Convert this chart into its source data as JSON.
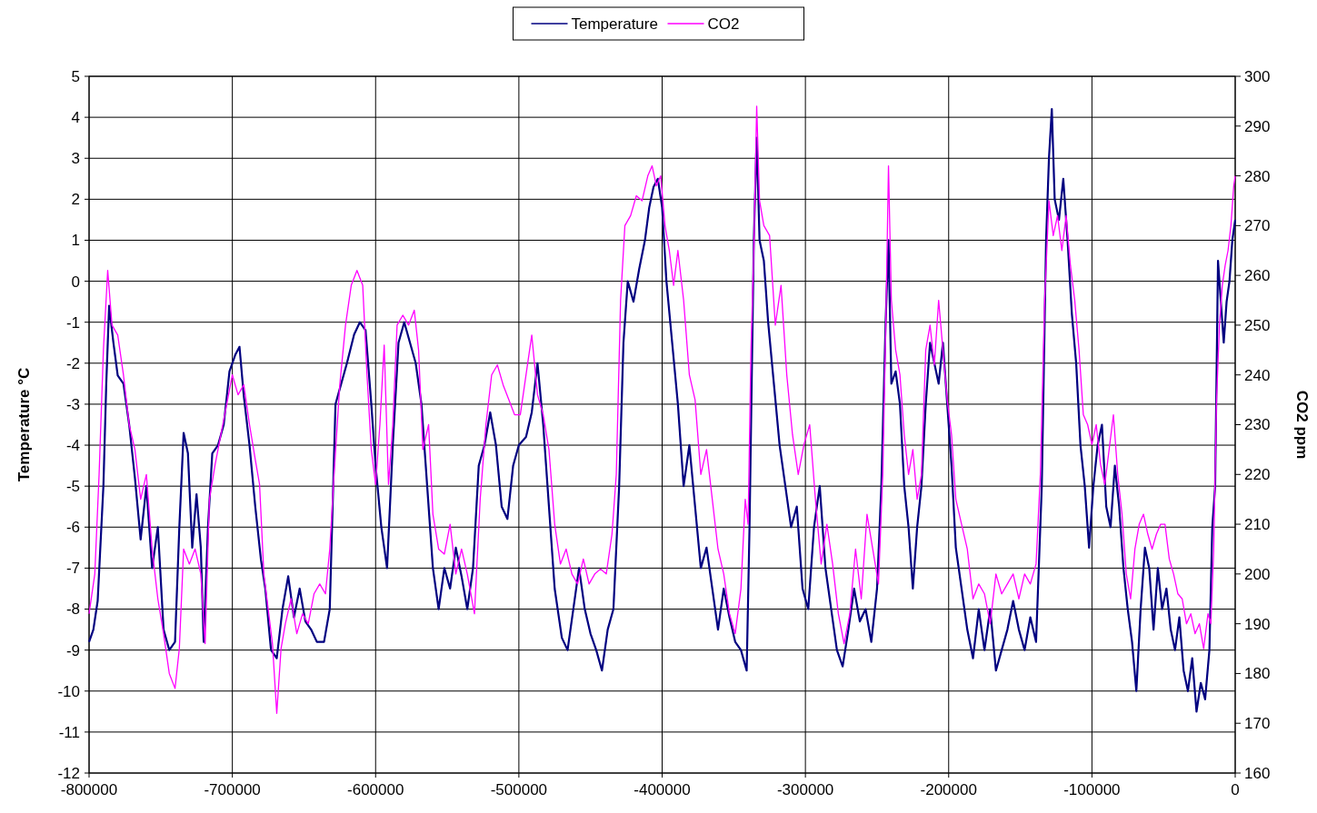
{
  "chart_data": {
    "type": "line",
    "ylabel": "Temperature  °C",
    "y2label": "CO2 ppm",
    "xlim": [
      -800000,
      0
    ],
    "xticks": [
      -800000,
      -700000,
      -600000,
      -500000,
      -400000,
      -300000,
      -200000,
      -100000,
      0
    ],
    "ylim": [
      -12,
      5
    ],
    "yticks": [
      -12,
      -11,
      -10,
      -9,
      -8,
      -7,
      -6,
      -5,
      -4,
      -3,
      -2,
      -1,
      0,
      1,
      2,
      3,
      4,
      5
    ],
    "y2lim": [
      160,
      300
    ],
    "y2ticks": [
      160,
      170,
      180,
      190,
      200,
      210,
      220,
      230,
      240,
      250,
      260,
      270,
      280,
      290,
      300
    ],
    "grid": true,
    "legend": "top",
    "line_style": "solid",
    "marker": "none",
    "series": [
      {
        "name": "Temperature",
        "color": "#000080",
        "x": [
          -800000,
          -797000,
          -794000,
          -790000,
          -788000,
          -786000,
          -783000,
          -780000,
          -776000,
          -772000,
          -768000,
          -764000,
          -760000,
          -756000,
          -752000,
          -748000,
          -744000,
          -740000,
          -737000,
          -734000,
          -731000,
          -728000,
          -725000,
          -722000,
          -720000,
          -717000,
          -714000,
          -710000,
          -706000,
          -702000,
          -698000,
          -695000,
          -692000,
          -688000,
          -684000,
          -680000,
          -677000,
          -673000,
          -669000,
          -665000,
          -661000,
          -657000,
          -653000,
          -649000,
          -645000,
          -641000,
          -636000,
          -632000,
          -628000,
          -624000,
          -620000,
          -615000,
          -611000,
          -607000,
          -603000,
          -600000,
          -596000,
          -592000,
          -588000,
          -584000,
          -580000,
          -576000,
          -572000,
          -568000,
          -564000,
          -560000,
          -556000,
          -552000,
          -548000,
          -544000,
          -540000,
          -536000,
          -532000,
          -528000,
          -524000,
          -520000,
          -516000,
          -512000,
          -508000,
          -504000,
          -500000,
          -495000,
          -491000,
          -487000,
          -483000,
          -479000,
          -475000,
          -470000,
          -466000,
          -462000,
          -458000,
          -454000,
          -450000,
          -446000,
          -442000,
          -438000,
          -434000,
          -430000,
          -427000,
          -424000,
          -420000,
          -416000,
          -412000,
          -409000,
          -406000,
          -403000,
          -400000,
          -397000,
          -393000,
          -389000,
          -385000,
          -381000,
          -377000,
          -373000,
          -369000,
          -365000,
          -361000,
          -357000,
          -353000,
          -349000,
          -345000,
          -341000,
          -339000,
          -336000,
          -334000,
          -332000,
          -329000,
          -326000,
          -322000,
          -318000,
          -314000,
          -310000,
          -306000,
          -302000,
          -298000,
          -294000,
          -290000,
          -286000,
          -282000,
          -278000,
          -274000,
          -270000,
          -266000,
          -262000,
          -258000,
          -254000,
          -250000,
          -247000,
          -244000,
          -242000,
          -240000,
          -237000,
          -234000,
          -231000,
          -228000,
          -225000,
          -222000,
          -219000,
          -216000,
          -213000,
          -210000,
          -207000,
          -204000,
          -201000,
          -198000,
          -195000,
          -191000,
          -187000,
          -183000,
          -179000,
          -175000,
          -171000,
          -167000,
          -163000,
          -159000,
          -155000,
          -151000,
          -147000,
          -143000,
          -139000,
          -135000,
          -132000,
          -130000,
          -128000,
          -126000,
          -123000,
          -120000,
          -117000,
          -114000,
          -111000,
          -108000,
          -105000,
          -102000,
          -99000,
          -96000,
          -93000,
          -90000,
          -87000,
          -84000,
          -81000,
          -78000,
          -75000,
          -72000,
          -69000,
          -66000,
          -63000,
          -60000,
          -57000,
          -54000,
          -51000,
          -48000,
          -45000,
          -42000,
          -39000,
          -36000,
          -33000,
          -30000,
          -27000,
          -24000,
          -21000,
          -18000,
          -16000,
          -14000,
          -12000,
          -10000,
          -8000,
          -6000,
          -4000,
          -2000,
          0
        ],
        "values": [
          -8.8,
          -8.5,
          -7.8,
          -5,
          -2.5,
          -0.6,
          -1.5,
          -2.3,
          -2.5,
          -3.5,
          -4.8,
          -6.3,
          -5,
          -7,
          -6,
          -8.5,
          -9,
          -8.8,
          -6,
          -3.7,
          -4.2,
          -6.5,
          -5.2,
          -6.5,
          -8.8,
          -6,
          -4.2,
          -4,
          -3.5,
          -2.2,
          -1.8,
          -1.6,
          -2.8,
          -4,
          -5.5,
          -6.8,
          -7.5,
          -9,
          -9.2,
          -8,
          -7.2,
          -8.2,
          -7.5,
          -8.3,
          -8.5,
          -8.8,
          -8.8,
          -8,
          -3,
          -2.5,
          -2,
          -1.3,
          -1,
          -1.2,
          -3,
          -4.5,
          -6,
          -7,
          -4,
          -1.5,
          -1,
          -1.5,
          -2,
          -3,
          -5,
          -7,
          -8,
          -7,
          -7.5,
          -6.5,
          -7.2,
          -8,
          -7,
          -4.5,
          -4,
          -3.2,
          -4,
          -5.5,
          -5.8,
          -4.5,
          -4,
          -3.8,
          -3.2,
          -2,
          -3.5,
          -5.5,
          -7.5,
          -8.7,
          -9,
          -8,
          -7,
          -8,
          -8.6,
          -9,
          -9.5,
          -8.5,
          -8,
          -5,
          -1.5,
          0,
          -0.5,
          0.3,
          1,
          1.8,
          2.3,
          2.5,
          1.8,
          0,
          -1.5,
          -3,
          -5,
          -4,
          -5.5,
          -7,
          -6.5,
          -7.5,
          -8.5,
          -7.5,
          -8.2,
          -8.8,
          -9,
          -9.5,
          -6,
          1,
          3.5,
          1,
          0.5,
          -1,
          -2.5,
          -4,
          -5,
          -6,
          -5.5,
          -7.5,
          -8,
          -6,
          -5,
          -7,
          -8,
          -9,
          -9.4,
          -8.5,
          -7.5,
          -8.3,
          -8,
          -8.8,
          -7.5,
          -5,
          -1,
          1,
          -2.5,
          -2.2,
          -3,
          -5,
          -6,
          -7.5,
          -6,
          -5,
          -3,
          -1.5,
          -2,
          -2.5,
          -1.5,
          -3,
          -4.5,
          -6.5,
          -7.5,
          -8.5,
          -9.2,
          -8,
          -9,
          -8,
          -9.5,
          -9,
          -8.5,
          -7.8,
          -8.5,
          -9,
          -8.2,
          -8.8,
          -5,
          1,
          3,
          4.2,
          2,
          1.5,
          2.5,
          1,
          -0.8,
          -2,
          -4,
          -5,
          -6.5,
          -5,
          -4,
          -3.5,
          -5.5,
          -6,
          -4.5,
          -5.5,
          -7,
          -8,
          -8.8,
          -10,
          -8,
          -6.5,
          -7,
          -8.5,
          -7,
          -8,
          -7.5,
          -8.5,
          -9,
          -8.2,
          -9.5,
          -10,
          -9.2,
          -10.5,
          -9.8,
          -10.2,
          -9,
          -6,
          -5,
          0.5,
          -0.5,
          -1.5,
          -0.5,
          0,
          1,
          1.5
        ]
      },
      {
        "name": "CO2",
        "color": "#ff00ff",
        "axis": "y2",
        "x": [
          -800000,
          -796000,
          -793000,
          -790000,
          -787000,
          -784000,
          -780000,
          -776000,
          -772000,
          -768000,
          -764000,
          -760000,
          -756000,
          -752000,
          -748000,
          -744000,
          -740000,
          -737000,
          -734000,
          -730000,
          -726000,
          -722000,
          -719000,
          -716000,
          -712000,
          -708000,
          -704000,
          -700000,
          -696000,
          -692000,
          -688000,
          -684000,
          -681000,
          -678000,
          -675000,
          -672000,
          -669000,
          -666000,
          -663000,
          -659000,
          -655000,
          -651000,
          -647000,
          -643000,
          -639000,
          -635000,
          -632000,
          -629000,
          -625000,
          -621000,
          -617000,
          -613000,
          -609000,
          -606000,
          -603000,
          -600000,
          -597000,
          -594000,
          -591000,
          -588000,
          -585000,
          -581000,
          -577000,
          -573000,
          -570000,
          -567000,
          -563000,
          -560000,
          -556000,
          -552000,
          -548000,
          -544000,
          -540000,
          -536000,
          -531000,
          -527000,
          -523000,
          -519000,
          -515000,
          -511000,
          -507000,
          -503000,
          -499000,
          -495000,
          -491000,
          -487000,
          -483000,
          -479000,
          -475000,
          -471000,
          -467000,
          -463000,
          -459000,
          -455000,
          -451000,
          -447000,
          -443000,
          -439000,
          -435000,
          -432000,
          -429000,
          -426000,
          -422000,
          -418000,
          -414000,
          -410000,
          -407000,
          -404000,
          -401000,
          -398000,
          -395000,
          -392000,
          -389000,
          -385000,
          -381000,
          -377000,
          -373000,
          -369000,
          -365000,
          -361000,
          -357000,
          -353000,
          -349000,
          -345000,
          -342000,
          -340000,
          -338000,
          -336000,
          -334000,
          -332000,
          -329000,
          -325000,
          -321000,
          -317000,
          -313000,
          -309000,
          -305000,
          -301000,
          -297000,
          -293000,
          -289000,
          -285000,
          -281000,
          -277000,
          -273000,
          -269000,
          -265000,
          -261000,
          -257000,
          -253000,
          -249000,
          -246000,
          -244000,
          -242000,
          -240000,
          -237000,
          -234000,
          -231000,
          -228000,
          -225000,
          -222000,
          -219000,
          -216000,
          -213000,
          -210000,
          -207000,
          -204000,
          -201000,
          -198000,
          -195000,
          -191000,
          -187000,
          -183000,
          -179000,
          -175000,
          -171000,
          -167000,
          -163000,
          -159000,
          -155000,
          -151000,
          -147000,
          -143000,
          -139000,
          -136000,
          -133000,
          -130000,
          -127000,
          -124000,
          -121000,
          -118000,
          -115000,
          -112000,
          -109000,
          -106000,
          -103000,
          -100000,
          -97000,
          -94000,
          -91000,
          -88000,
          -85000,
          -82000,
          -79000,
          -76000,
          -73000,
          -70000,
          -67000,
          -64000,
          -61000,
          -58000,
          -55000,
          -52000,
          -49000,
          -46000,
          -43000,
          -40000,
          -37000,
          -34000,
          -31000,
          -28000,
          -25000,
          -22000,
          -19000,
          -17000,
          -15000,
          -13000,
          -11000,
          -9000,
          -7000,
          -5000,
          -3000,
          -1000,
          0
        ],
        "values": [
          192,
          200,
          220,
          245,
          261,
          250,
          248,
          240,
          230,
          225,
          215,
          220,
          205,
          195,
          188,
          180,
          177,
          185,
          205,
          202,
          205,
          200,
          186,
          215,
          222,
          228,
          234,
          240,
          236,
          238,
          230,
          223,
          218,
          200,
          193,
          186,
          172,
          185,
          190,
          195,
          188,
          192,
          190,
          196,
          198,
          196,
          205,
          220,
          238,
          250,
          258,
          261,
          258,
          240,
          225,
          218,
          230,
          246,
          218,
          230,
          250,
          252,
          250,
          253,
          245,
          225,
          230,
          212,
          205,
          204,
          210,
          200,
          205,
          200,
          192,
          215,
          230,
          240,
          242,
          238,
          235,
          232,
          232,
          240,
          248,
          236,
          232,
          225,
          210,
          202,
          205,
          200,
          198,
          203,
          198,
          200,
          201,
          200,
          208,
          220,
          255,
          270,
          272,
          276,
          275,
          280,
          282,
          278,
          280,
          270,
          265,
          258,
          265,
          255,
          240,
          235,
          220,
          225,
          215,
          205,
          200,
          192,
          188,
          197,
          215,
          210,
          245,
          265,
          294,
          275,
          270,
          268,
          250,
          258,
          240,
          228,
          220,
          226,
          230,
          215,
          202,
          210,
          202,
          192,
          186,
          192,
          205,
          195,
          212,
          205,
          198,
          220,
          248,
          282,
          255,
          245,
          240,
          228,
          220,
          225,
          215,
          220,
          245,
          250,
          242,
          255,
          245,
          235,
          228,
          215,
          210,
          205,
          195,
          198,
          196,
          190,
          200,
          196,
          198,
          200,
          195,
          200,
          198,
          202,
          220,
          255,
          275,
          268,
          272,
          265,
          272,
          262,
          255,
          245,
          232,
          230,
          226,
          230,
          222,
          218,
          225,
          232,
          220,
          212,
          200,
          195,
          205,
          210,
          212,
          208,
          205,
          208,
          210,
          210,
          203,
          200,
          196,
          195,
          190,
          192,
          188,
          190,
          185,
          192,
          190,
          205,
          235,
          250,
          258,
          262,
          265,
          270,
          278,
          280
        ]
      }
    ]
  }
}
